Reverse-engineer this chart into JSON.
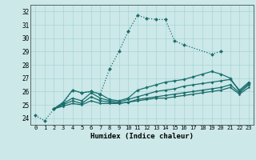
{
  "xlabel": "Humidex (Indice chaleur)",
  "xlim": [
    -0.5,
    23.5
  ],
  "ylim": [
    23.5,
    32.5
  ],
  "yticks": [
    24,
    25,
    26,
    27,
    28,
    29,
    30,
    31,
    32
  ],
  "xticks": [
    0,
    1,
    2,
    3,
    4,
    5,
    6,
    7,
    8,
    9,
    10,
    11,
    12,
    13,
    14,
    15,
    16,
    17,
    18,
    19,
    20,
    21,
    22,
    23
  ],
  "bg_color": "#cce8e8",
  "grid_color": "#aad4d4",
  "lines": [
    {
      "x": [
        0,
        1,
        2,
        3,
        4,
        5,
        6,
        7,
        8,
        9,
        10,
        11,
        12,
        13,
        14,
        15,
        16,
        19,
        20
      ],
      "y": [
        24.2,
        23.8,
        24.7,
        25.1,
        26.1,
        25.9,
        26.0,
        25.8,
        27.7,
        29.0,
        30.5,
        31.7,
        31.5,
        31.4,
        31.4,
        29.8,
        29.5,
        28.8,
        29.0
      ],
      "color": "#1a6b6b",
      "lw": 0.9,
      "ms": 2.2,
      "ls": ":"
    },
    {
      "x": [
        2,
        3,
        4,
        5,
        6,
        7,
        8,
        9,
        10,
        11,
        12,
        13,
        14,
        15,
        16,
        17,
        18,
        19,
        20,
        21,
        22,
        23
      ],
      "y": [
        24.7,
        25.2,
        26.1,
        25.9,
        26.0,
        25.8,
        25.4,
        25.3,
        25.5,
        26.1,
        26.3,
        26.5,
        26.7,
        26.8,
        26.9,
        27.1,
        27.3,
        27.5,
        27.3,
        27.0,
        26.0,
        26.6
      ],
      "color": "#1a7272",
      "lw": 0.9,
      "ms": 2.0,
      "ls": "-"
    },
    {
      "x": [
        2,
        3,
        4,
        5,
        6,
        7,
        8,
        9,
        10,
        11,
        12,
        13,
        14,
        15,
        16,
        17,
        18,
        19,
        20,
        21,
        22,
        23
      ],
      "y": [
        24.7,
        25.1,
        25.5,
        25.3,
        25.9,
        25.5,
        25.3,
        25.2,
        25.4,
        25.6,
        25.8,
        26.0,
        26.1,
        26.2,
        26.4,
        26.5,
        26.6,
        26.7,
        26.8,
        26.9,
        26.1,
        26.7
      ],
      "color": "#1a6e6e",
      "lw": 0.9,
      "ms": 1.8,
      "ls": "-"
    },
    {
      "x": [
        2,
        3,
        4,
        5,
        6,
        7,
        8,
        9,
        10,
        11,
        12,
        13,
        14,
        15,
        16,
        17,
        18,
        19,
        20,
        21,
        22,
        23
      ],
      "y": [
        24.7,
        25.0,
        25.3,
        25.1,
        25.6,
        25.3,
        25.2,
        25.1,
        25.2,
        25.4,
        25.5,
        25.6,
        25.7,
        25.8,
        25.9,
        26.0,
        26.1,
        26.2,
        26.3,
        26.5,
        25.9,
        26.5
      ],
      "color": "#1a6c6c",
      "lw": 0.9,
      "ms": 1.8,
      "ls": "-"
    },
    {
      "x": [
        2,
        3,
        4,
        5,
        6,
        7,
        8,
        9,
        10,
        11,
        12,
        13,
        14,
        15,
        16,
        17,
        18,
        19,
        20,
        21,
        22,
        23
      ],
      "y": [
        24.7,
        24.9,
        25.1,
        25.0,
        25.3,
        25.1,
        25.1,
        25.1,
        25.2,
        25.3,
        25.4,
        25.5,
        25.5,
        25.6,
        25.7,
        25.8,
        25.9,
        26.0,
        26.1,
        26.3,
        25.8,
        26.3
      ],
      "color": "#1a6a6a",
      "lw": 0.9,
      "ms": 1.5,
      "ls": "-"
    }
  ]
}
